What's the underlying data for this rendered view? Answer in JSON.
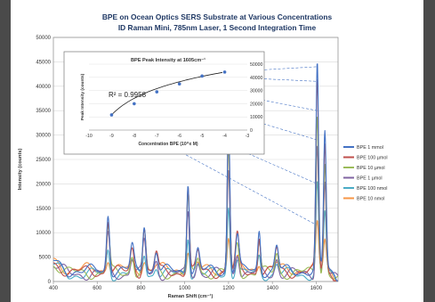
{
  "chart_data": {
    "type": "line",
    "title": "BPE on Ocean Optics SERS Substrate at Various Concentrations",
    "subtitle": "ID Raman Mini, 785nm Laser, 1 Second Integration Time",
    "xlabel": "Raman Shift (cm⁻¹)",
    "ylabel": "Intensity (counts)",
    "xlim": [
      400,
      1700
    ],
    "ylim": [
      0,
      50000
    ],
    "xticks": [
      400,
      600,
      800,
      1000,
      1200,
      1400,
      1600
    ],
    "yticks": [
      0,
      5000,
      10000,
      15000,
      20000,
      25000,
      30000,
      35000,
      40000,
      45000,
      50000
    ],
    "grid": true,
    "legend_position": "right",
    "peaks": [
      {
        "center": 650,
        "width": 7,
        "rel": 0.28
      },
      {
        "center": 760,
        "width": 8,
        "rel": 0.12
      },
      {
        "center": 815,
        "width": 7,
        "rel": 0.24
      },
      {
        "center": 870,
        "width": 8,
        "rel": 0.1
      },
      {
        "center": 1015,
        "width": 6,
        "rel": 0.45
      },
      {
        "center": 1060,
        "width": 8,
        "rel": 0.1
      },
      {
        "center": 1200,
        "width": 6,
        "rel": 0.76
      },
      {
        "center": 1240,
        "width": 8,
        "rel": 0.18
      },
      {
        "center": 1340,
        "width": 6,
        "rel": 0.2
      },
      {
        "center": 1420,
        "width": 8,
        "rel": 0.12
      },
      {
        "center": 1605,
        "width": 6,
        "rel": 1.0
      },
      {
        "center": 1640,
        "width": 6,
        "rel": 0.68
      }
    ],
    "series": [
      {
        "name": "BPE 1 mmol",
        "color": "#4472c4",
        "peak_max": 44000,
        "baseline": 2200
      },
      {
        "name": "BPE 100 µmol",
        "color": "#c0504d",
        "peak_max": 41000,
        "baseline": 2000
      },
      {
        "name": "BPE 10 µmol",
        "color": "#9bbb59",
        "peak_max": 35000,
        "baseline": 1800
      },
      {
        "name": "BPE 1 µmol",
        "color": "#8064a2",
        "peak_max": 29000,
        "baseline": 1600
      },
      {
        "name": "BPE 100 nmol",
        "color": "#4bacc6",
        "peak_max": 20000,
        "baseline": 1500
      },
      {
        "name": "BPE 10 nmol",
        "color": "#f79646",
        "peak_max": 11500,
        "baseline": 2500
      }
    ],
    "inset": {
      "title": "BPE Peak Intensity at 1605cm⁻¹",
      "xlabel": "Concentration BPE (10^x M)",
      "ylabel": "Peak Intensity (counts)",
      "xlim": [
        -10,
        -3
      ],
      "ylim": [
        0,
        50000
      ],
      "xticks": [
        -10,
        -9,
        -8,
        -7,
        -6,
        -5,
        -4,
        -3
      ],
      "yticks": [
        0,
        10000,
        20000,
        30000,
        40000,
        50000
      ],
      "r_squared": "R² = 0.9958",
      "x": [
        -9,
        -8,
        -7,
        -6,
        -5,
        -4
      ],
      "y": [
        11500,
        20000,
        29000,
        35000,
        41000,
        44000
      ],
      "marker_color": "#4472c4"
    }
  }
}
